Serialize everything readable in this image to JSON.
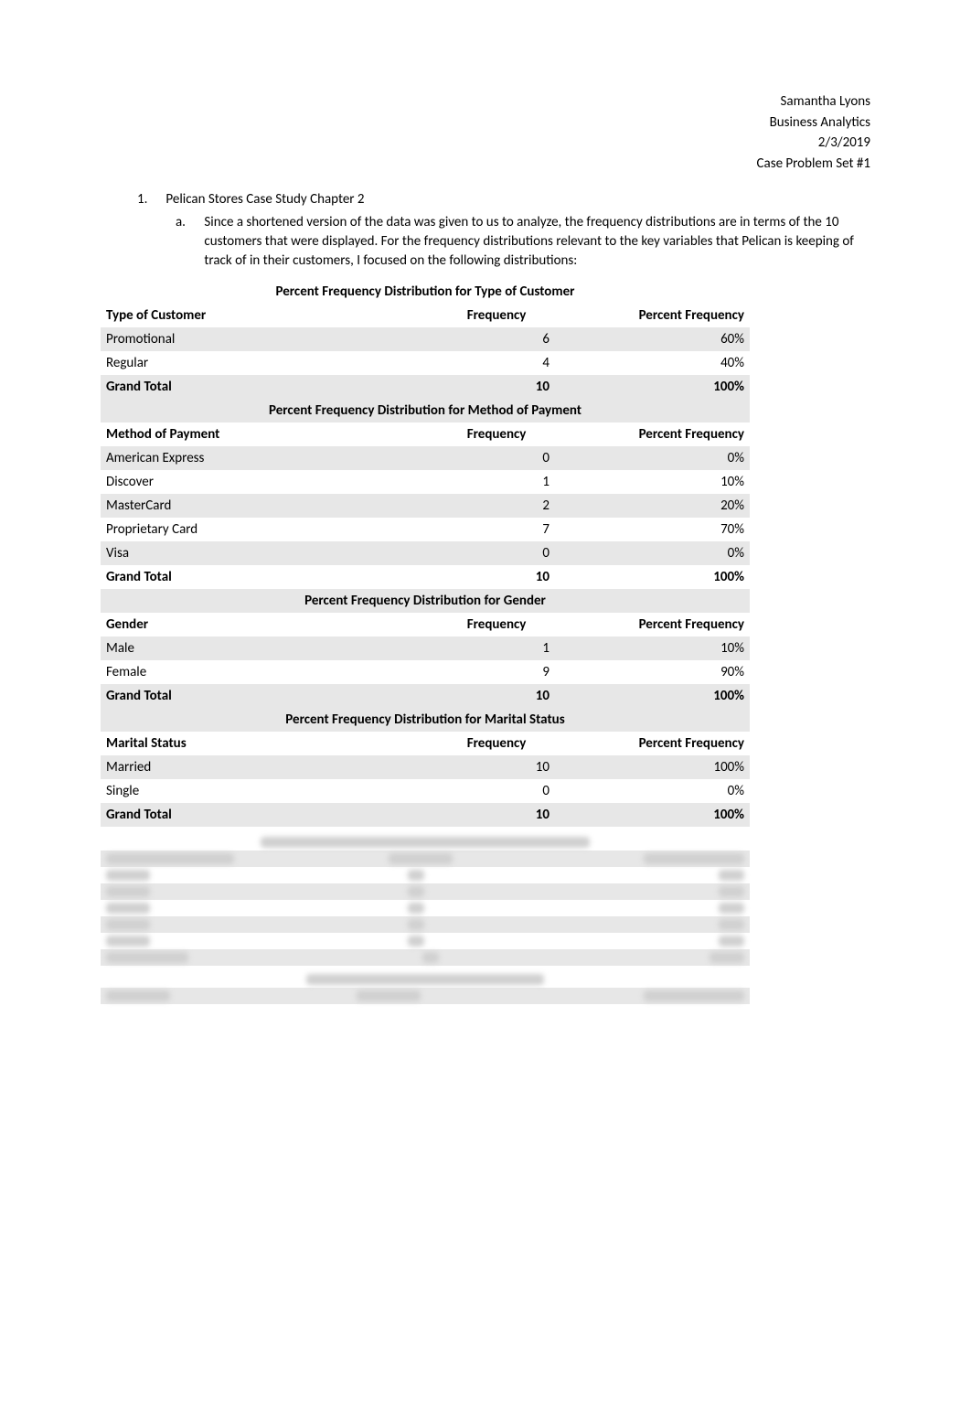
{
  "header": {
    "author": "Samantha Lyons",
    "course": "Business Analytics",
    "date": "2/3/2019",
    "assignment": "Case Problem Set #1"
  },
  "outline": {
    "item1_marker": "1.",
    "item1_text": "Pelican Stores Case Study Chapter 2",
    "itemA_marker": "a.",
    "itemA_text": "Since a shortened version of the data was given to us to analyze, the frequency distributions are in terms of the 10 customers that were displayed. For the frequency distributions relevant to the key variables that Pelican is keeping of track of in their customers, I focused on the following distributions:"
  },
  "tables": [
    {
      "title": "Percent Frequency Distribution for Type of Customer",
      "col1": "Type of Customer",
      "col2": "Frequency",
      "col3": "Percent Frequency",
      "rows": [
        {
          "label": "Promotional",
          "freq": "6",
          "pct": "60%",
          "alt": true
        },
        {
          "label": "Regular",
          "freq": "4",
          "pct": "40%",
          "alt": false
        },
        {
          "label": "Grand Total",
          "freq": "10",
          "pct": "100%",
          "alt": true,
          "total": true
        }
      ]
    },
    {
      "title": "Percent Frequency Distribution for Method of Payment",
      "col1": "Method of Payment",
      "col2": "Frequency",
      "col3": "Percent Frequency",
      "rows": [
        {
          "label": "American Express",
          "freq": "0",
          "pct": "0%",
          "alt": true
        },
        {
          "label": "Discover",
          "freq": "1",
          "pct": "10%",
          "alt": false
        },
        {
          "label": "MasterCard",
          "freq": "2",
          "pct": "20%",
          "alt": true
        },
        {
          "label": "Proprietary Card",
          "freq": "7",
          "pct": "70%",
          "alt": false
        },
        {
          "label": "Visa",
          "freq": "0",
          "pct": "0%",
          "alt": true
        },
        {
          "label": "Grand Total",
          "freq": "10",
          "pct": "100%",
          "alt": false,
          "total": true
        }
      ]
    },
    {
      "title": "Percent Frequency Distribution for Gender",
      "col1": "Gender",
      "col2": "Frequency",
      "col3": "Percent Frequency",
      "rows": [
        {
          "label": "Male",
          "freq": "1",
          "pct": "10%",
          "alt": true
        },
        {
          "label": "Female",
          "freq": "9",
          "pct": "90%",
          "alt": false
        },
        {
          "label": "Grand Total",
          "freq": "10",
          "pct": "100%",
          "alt": true,
          "total": true
        }
      ]
    },
    {
      "title": "Percent Frequency Distribution for Marital Status",
      "col1": "Marital Status",
      "col2": "Frequency",
      "col3": "Percent Frequency",
      "rows": [
        {
          "label": "Married",
          "freq": "10",
          "pct": "100%",
          "alt": true
        },
        {
          "label": "Single",
          "freq": "0",
          "pct": "0%",
          "alt": false
        },
        {
          "label": "Grand Total",
          "freq": "10",
          "pct": "100%",
          "alt": true,
          "total": true
        }
      ]
    }
  ],
  "styling": {
    "background_color": "#ffffff",
    "band_color": "#e7e7e7",
    "text_color": "#000000",
    "font_family": "Calibri",
    "body_fontsize": 15,
    "col_widths_pct": [
      52,
      18,
      30
    ],
    "col_align": [
      "left",
      "right",
      "right"
    ]
  }
}
